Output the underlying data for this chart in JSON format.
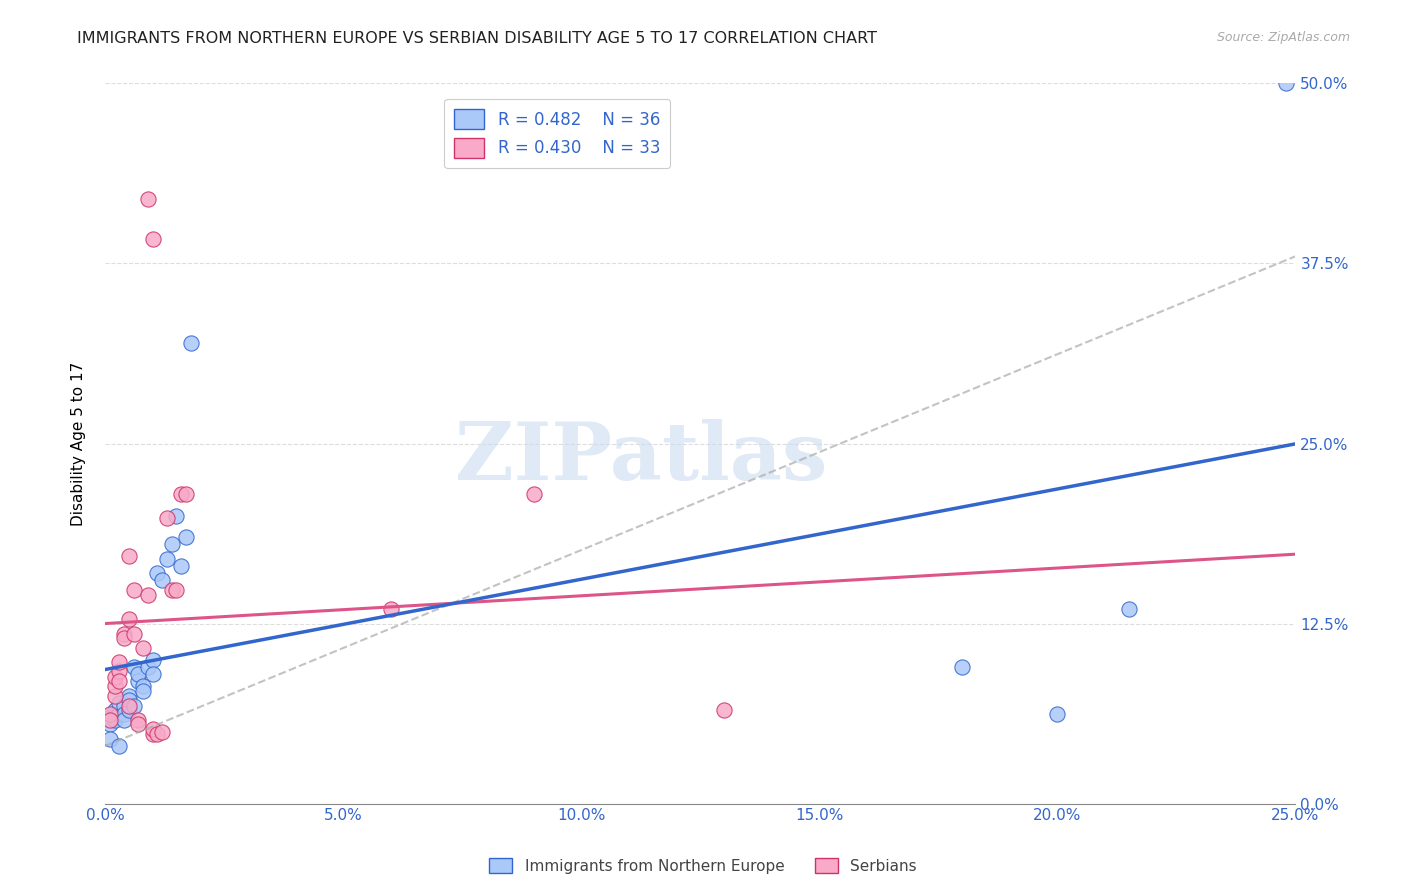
{
  "title": "IMMIGRANTS FROM NORTHERN EUROPE VS SERBIAN DISABILITY AGE 5 TO 17 CORRELATION CHART",
  "source": "Source: ZipAtlas.com",
  "ylabel": "Disability Age 5 to 17",
  "legend1_label": "Immigrants from Northern Europe",
  "legend2_label": "Serbians",
  "R1": 0.482,
  "N1": 36,
  "R2": 0.43,
  "N2": 33,
  "color_blue": "#aac8f8",
  "color_blue_line": "#3366cc",
  "color_pink": "#f8aac8",
  "color_pink_line": "#cc3366",
  "color_line_blue": "#3366cc",
  "color_line_pink": "#dd5588",
  "scatter_blue": [
    [
      0.001,
      0.06
    ],
    [
      0.001,
      0.055
    ],
    [
      0.001,
      0.045
    ],
    [
      0.002,
      0.065
    ],
    [
      0.002,
      0.06
    ],
    [
      0.002,
      0.058
    ],
    [
      0.003,
      0.062
    ],
    [
      0.003,
      0.04
    ],
    [
      0.003,
      0.07
    ],
    [
      0.004,
      0.068
    ],
    [
      0.004,
      0.062
    ],
    [
      0.004,
      0.058
    ],
    [
      0.005,
      0.075
    ],
    [
      0.005,
      0.065
    ],
    [
      0.005,
      0.072
    ],
    [
      0.006,
      0.068
    ],
    [
      0.006,
      0.095
    ],
    [
      0.007,
      0.085
    ],
    [
      0.007,
      0.09
    ],
    [
      0.008,
      0.082
    ],
    [
      0.008,
      0.078
    ],
    [
      0.009,
      0.095
    ],
    [
      0.01,
      0.1
    ],
    [
      0.01,
      0.09
    ],
    [
      0.011,
      0.16
    ],
    [
      0.012,
      0.155
    ],
    [
      0.013,
      0.17
    ],
    [
      0.014,
      0.18
    ],
    [
      0.015,
      0.2
    ],
    [
      0.016,
      0.165
    ],
    [
      0.017,
      0.185
    ],
    [
      0.018,
      0.32
    ],
    [
      0.18,
      0.095
    ],
    [
      0.2,
      0.062
    ],
    [
      0.215,
      0.135
    ],
    [
      0.248,
      0.5
    ]
  ],
  "scatter_pink": [
    [
      0.001,
      0.062
    ],
    [
      0.001,
      0.058
    ],
    [
      0.002,
      0.075
    ],
    [
      0.002,
      0.082
    ],
    [
      0.002,
      0.088
    ],
    [
      0.003,
      0.092
    ],
    [
      0.003,
      0.098
    ],
    [
      0.003,
      0.085
    ],
    [
      0.004,
      0.118
    ],
    [
      0.004,
      0.115
    ],
    [
      0.005,
      0.172
    ],
    [
      0.005,
      0.128
    ],
    [
      0.005,
      0.068
    ],
    [
      0.006,
      0.148
    ],
    [
      0.006,
      0.118
    ],
    [
      0.007,
      0.058
    ],
    [
      0.007,
      0.055
    ],
    [
      0.008,
      0.108
    ],
    [
      0.009,
      0.145
    ],
    [
      0.009,
      0.42
    ],
    [
      0.01,
      0.392
    ],
    [
      0.01,
      0.048
    ],
    [
      0.01,
      0.052
    ],
    [
      0.011,
      0.048
    ],
    [
      0.012,
      0.05
    ],
    [
      0.013,
      0.198
    ],
    [
      0.014,
      0.148
    ],
    [
      0.015,
      0.148
    ],
    [
      0.016,
      0.215
    ],
    [
      0.017,
      0.215
    ],
    [
      0.06,
      0.135
    ],
    [
      0.09,
      0.215
    ],
    [
      0.13,
      0.065
    ]
  ],
  "xmin": 0.0,
  "xmax": 0.25,
  "ymin": 0.0,
  "ymax": 0.5,
  "ytick_vals": [
    0.0,
    0.125,
    0.25,
    0.375,
    0.5
  ],
  "xtick_vals": [
    0.0,
    0.05,
    0.1,
    0.15,
    0.2,
    0.25
  ],
  "grid_color": "#dddddd",
  "background_color": "#ffffff",
  "watermark_text": "ZIPatlas",
  "watermark_color": "#c8d8f0",
  "dot_size": 120
}
